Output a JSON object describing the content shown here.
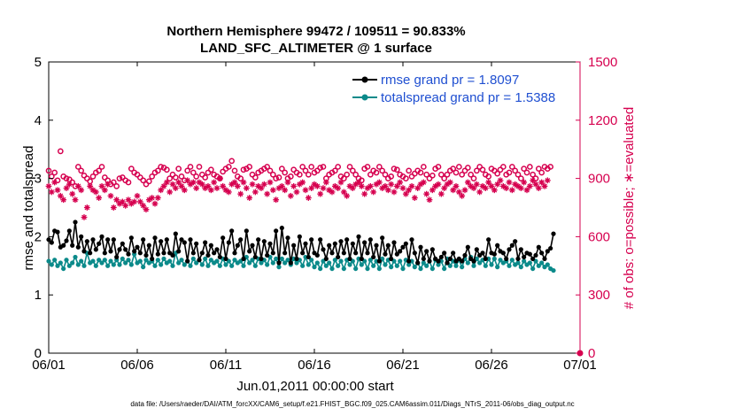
{
  "chart_data": {
    "type": "line",
    "title_line1": "Northern Hemisphere 99472 / 109511 = 90.833%",
    "title_line2": "LAND_SFC_ALTIMETER @ 1 surface",
    "xlabel": "Jun.01,2011 00:00:00 start",
    "ylabel_left": "rmse and totalspread",
    "ylabel_right": "# of obs: o=possible; ∗=evaluated",
    "footer": "data file: /Users/raeder/DAI/ATM_forcXX/CAM6_setup/f.e21.FHIST_BGC.f09_025.CAM6assim.011/Diags_NTrS_2011-06/obs_diag_output.nc",
    "x_tick_labels": [
      "06/01",
      "06/06",
      "06/11",
      "06/16",
      "06/21",
      "06/26",
      "07/01"
    ],
    "x_tick_days": [
      0,
      5,
      10,
      15,
      20,
      25,
      30
    ],
    "xlim_days": [
      0,
      30
    ],
    "ylim_left": [
      0,
      5
    ],
    "y_ticks_left": [
      0,
      1,
      2,
      3,
      4,
      5
    ],
    "ylim_right": [
      0,
      1500
    ],
    "y_ticks_right": [
      0,
      300,
      600,
      900,
      1200,
      1500
    ],
    "colors": {
      "rmse": "#000000",
      "spread": "#0b8a8a",
      "obs": "#d6004f",
      "legend_text": "#1f4fd1"
    },
    "legend": {
      "position": "top-right",
      "entries": [
        "rmse grand pr = 1.8097",
        "totalspread grand pr = 1.5388"
      ]
    },
    "series": [
      {
        "name": "rmse",
        "values": [
          1.95,
          1.9,
          2.1,
          2.08,
          1.82,
          1.85,
          1.93,
          2.1,
          1.85,
          2.25,
          1.82,
          2.0,
          1.75,
          1.92,
          1.72,
          1.95,
          1.78,
          1.88,
          2.0,
          1.72,
          1.95,
          1.75,
          1.95,
          1.65,
          1.78,
          1.88,
          1.78,
          1.7,
          1.98,
          1.75,
          1.82,
          1.72,
          1.95,
          1.68,
          1.85,
          1.62,
          1.98,
          1.7,
          1.92,
          1.72,
          1.95,
          1.72,
          1.68,
          2.05,
          1.75,
          1.95,
          1.9,
          1.58,
          1.95,
          1.72,
          1.88,
          1.6,
          1.72,
          1.9,
          1.68,
          1.85,
          1.72,
          1.78,
          1.65,
          1.98,
          1.62,
          1.9,
          2.1,
          1.72,
          1.85,
          1.95,
          1.62,
          2.1,
          1.75,
          1.85,
          1.65,
          1.95,
          1.62,
          1.92,
          1.68,
          1.88,
          1.72,
          2.1,
          1.55,
          2.15,
          1.72,
          1.98,
          1.55,
          1.85,
          1.62,
          2.0,
          1.72,
          1.88,
          1.65,
          1.95,
          1.72,
          1.68,
          1.95,
          1.78,
          1.62,
          1.85,
          1.72,
          1.88,
          1.65,
          1.92,
          1.72,
          1.95,
          1.62,
          1.88,
          1.72,
          2.0,
          1.62,
          1.9,
          1.72,
          1.95,
          1.65,
          1.85,
          1.58,
          1.98,
          1.7,
          1.85,
          1.62,
          1.9,
          1.7,
          1.75,
          1.82,
          1.88,
          1.58,
          1.95,
          1.72,
          1.55,
          1.82,
          1.62,
          1.75,
          1.58,
          1.78,
          1.62,
          1.58,
          1.65,
          1.72,
          1.55,
          1.62,
          1.72,
          1.58,
          1.62,
          1.58,
          1.68,
          1.82,
          1.62,
          1.58,
          1.78,
          1.68,
          1.72,
          1.62,
          1.95,
          1.72,
          1.7,
          1.85,
          1.75,
          1.72,
          1.62,
          1.78,
          1.85,
          1.92,
          1.62,
          1.78,
          1.65,
          1.72,
          1.7,
          1.62,
          1.68,
          1.82,
          1.72,
          1.62,
          1.75,
          1.8,
          2.05
        ],
        "note": "rmse, markers every 4 hours (6/01–7/01)"
      },
      {
        "name": "totalspread",
        "values": [
          1.58,
          1.52,
          1.6,
          1.5,
          1.55,
          1.45,
          1.6,
          1.5,
          1.55,
          1.65,
          1.52,
          1.58,
          1.5,
          1.72,
          1.55,
          1.58,
          1.5,
          1.6,
          1.55,
          1.6,
          1.5,
          1.58,
          1.52,
          1.6,
          1.52,
          1.62,
          1.55,
          1.6,
          1.52,
          1.7,
          1.55,
          1.58,
          1.48,
          1.6,
          1.55,
          1.58,
          1.5,
          1.6,
          1.52,
          1.62,
          1.55,
          1.58,
          1.5,
          1.72,
          1.55,
          1.6,
          1.52,
          1.58,
          1.5,
          1.62,
          1.55,
          1.6,
          1.52,
          1.62,
          1.5,
          1.6,
          1.55,
          1.58,
          1.5,
          1.62,
          1.52,
          1.58,
          1.5,
          1.6,
          1.55,
          1.58,
          1.5,
          1.65,
          1.55,
          1.6,
          1.5,
          1.62,
          1.55,
          1.6,
          1.52,
          1.65,
          1.55,
          1.62,
          1.48,
          1.62,
          1.55,
          1.6,
          1.52,
          1.62,
          1.55,
          1.6,
          1.5,
          1.65,
          1.52,
          1.6,
          1.48,
          1.55,
          1.45,
          1.58,
          1.5,
          1.55,
          1.45,
          1.6,
          1.5,
          1.58,
          1.45,
          1.6,
          1.52,
          1.58,
          1.45,
          1.62,
          1.52,
          1.58,
          1.45,
          1.6,
          1.5,
          1.58,
          1.45,
          1.62,
          1.52,
          1.6,
          1.48,
          1.58,
          1.5,
          1.58,
          1.45,
          1.6,
          1.52,
          1.58,
          1.48,
          1.55,
          1.45,
          1.55,
          1.5,
          1.58,
          1.45,
          1.6,
          1.52,
          1.58,
          1.45,
          1.62,
          1.5,
          1.58,
          1.5,
          1.6,
          1.48,
          1.62,
          1.55,
          1.65,
          1.5,
          1.62,
          1.55,
          1.6,
          1.5,
          1.62,
          1.52,
          1.62,
          1.48,
          1.6,
          1.55,
          1.58,
          1.5,
          1.6,
          1.52,
          1.55,
          1.48,
          1.58,
          1.52,
          1.55,
          1.45,
          1.58,
          1.5,
          1.55,
          1.48,
          1.52,
          1.45,
          1.42
        ],
        "note": "totalspread"
      },
      {
        "name": "obs possible",
        "values": [
          940,
          910,
          930,
          890,
          1040,
          910,
          900,
          895,
          880,
          860,
          960,
          940,
          915,
          900,
          885,
          910,
          930,
          940,
          960,
          905,
          890,
          870,
          880,
          860,
          900,
          905,
          890,
          880,
          950,
          930,
          920,
          905,
          890,
          870,
          885,
          910,
          930,
          940,
          960,
          955,
          945,
          900,
          920,
          905,
          950,
          910,
          890,
          940,
          960,
          930,
          910,
          960,
          920,
          905,
          930,
          945,
          920,
          910,
          900,
          935,
          950,
          960,
          990,
          940,
          910,
          900,
          945,
          950,
          960,
          920,
          905,
          930,
          940,
          950,
          960,
          940,
          920,
          900,
          905,
          950,
          930,
          900,
          910,
          945,
          930,
          920,
          960,
          940,
          920,
          960,
          930,
          940,
          955,
          960,
          900,
          920,
          930,
          940,
          960,
          910,
          900,
          920,
          960,
          940,
          920,
          900,
          890,
          950,
          960,
          920,
          940,
          930,
          960,
          940,
          920,
          900,
          910,
          950,
          945,
          920,
          910,
          900,
          940,
          910,
          925,
          940,
          930,
          960,
          920,
          900,
          915,
          950,
          960,
          920,
          900,
          920,
          940,
          950,
          930,
          960,
          920,
          940,
          955,
          920,
          900,
          940,
          960,
          945,
          920,
          910,
          950,
          940,
          925,
          945,
          960,
          920,
          930,
          960,
          940,
          920,
          900,
          950,
          930,
          960,
          920,
          900,
          950,
          930,
          960,
          950,
          960
        ],
        "note": "o = possible observations (right axis)"
      },
      {
        "name": "obs evaluated",
        "values": [
          860,
          830,
          880,
          840,
          810,
          790,
          850,
          870,
          820,
          790,
          860,
          840,
          700,
          750,
          860,
          840,
          830,
          800,
          860,
          840,
          870,
          810,
          750,
          790,
          770,
          780,
          760,
          790,
          770,
          780,
          810,
          780,
          760,
          740,
          790,
          800,
          770,
          800,
          840,
          860,
          880,
          830,
          870,
          850,
          880,
          860,
          840,
          890,
          870,
          880,
          850,
          880,
          870,
          850,
          860,
          840,
          880,
          850,
          900,
          860,
          840,
          830,
          870,
          880,
          860,
          820,
          880,
          850,
          800,
          870,
          830,
          860,
          850,
          870,
          820,
          880,
          840,
          790,
          850,
          860,
          840,
          880,
          810,
          860,
          830,
          870,
          880,
          840,
          800,
          850,
          870,
          860,
          820,
          850,
          880,
          840,
          830,
          860,
          850,
          880,
          830,
          810,
          860,
          850,
          870,
          880,
          860,
          820,
          850,
          860,
          830,
          870,
          880,
          850,
          860,
          840,
          870,
          830,
          860,
          880,
          850,
          820,
          840,
          860,
          800,
          850,
          870,
          880,
          820,
          790,
          840,
          860,
          870,
          820,
          850,
          870,
          880,
          840,
          860,
          830,
          810,
          840,
          880,
          860,
          850,
          870,
          830,
          860,
          850,
          880,
          860,
          840,
          870,
          890,
          860,
          850,
          880,
          840,
          870,
          860,
          850,
          880,
          840,
          860,
          890,
          870,
          850,
          880,
          860,
          890
        ],
        "note": "* = evaluated observations (right axis)"
      }
    ],
    "x_points_per_day": 6
  }
}
